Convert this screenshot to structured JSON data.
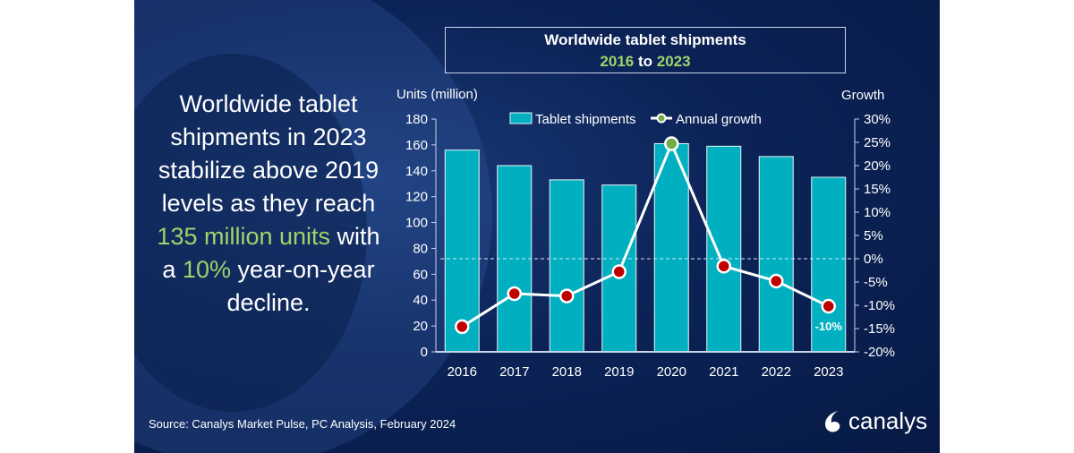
{
  "headline": {
    "part1": "Worldwide tablet shipments in 2023 stabilize above 2019 levels as they reach ",
    "highlight1": "135 million units",
    "part2": " with a ",
    "highlight2": "10%",
    "part3": " year-on-year decline."
  },
  "title_box": {
    "line1": "Worldwide tablet shipments",
    "year_from": "2016",
    "to": " to ",
    "year_to": "2023"
  },
  "source": "Source: Canalys Market Pulse, PC Analysis, February 2024",
  "logo": {
    "text": "canalys"
  },
  "colors": {
    "background": "#0c2357",
    "bar": "#00b0c0",
    "line": "#ffffff",
    "marker_negative": "#c00000",
    "marker_positive": "#70ad47",
    "highlight": "#9ed36a"
  },
  "chart_data": {
    "type": "bar+line",
    "categories": [
      "2016",
      "2017",
      "2018",
      "2019",
      "2020",
      "2021",
      "2022",
      "2023"
    ],
    "ylabel": "Units (million)",
    "y2label": "Growth",
    "ylim": [
      0,
      180
    ],
    "yticks": [
      "0",
      "20",
      "40",
      "60",
      "80",
      "100",
      "120",
      "140",
      "160",
      "180"
    ],
    "y2lim": [
      -20,
      30
    ],
    "y2ticks": [
      "-20%",
      "-15%",
      "-10%",
      "-5%",
      "0%",
      "5%",
      "10%",
      "15%",
      "20%",
      "25%",
      "30%"
    ],
    "grid": false,
    "legend_position": "top",
    "series": [
      {
        "name": "Tablet shipments",
        "type": "bar",
        "axis": "left",
        "values": [
          156,
          144,
          133,
          129,
          161,
          159,
          151,
          135
        ]
      },
      {
        "name": "Annual growth",
        "type": "line",
        "axis": "right",
        "values": [
          -14.6,
          -7.5,
          -8.0,
          -2.8,
          24.7,
          -1.6,
          -4.8,
          -10.2
        ]
      }
    ],
    "annotations": [
      {
        "category": "2023",
        "text": "-10%"
      }
    ],
    "reference_line": {
      "axis": "right",
      "value": 0,
      "style": "dashed"
    }
  }
}
